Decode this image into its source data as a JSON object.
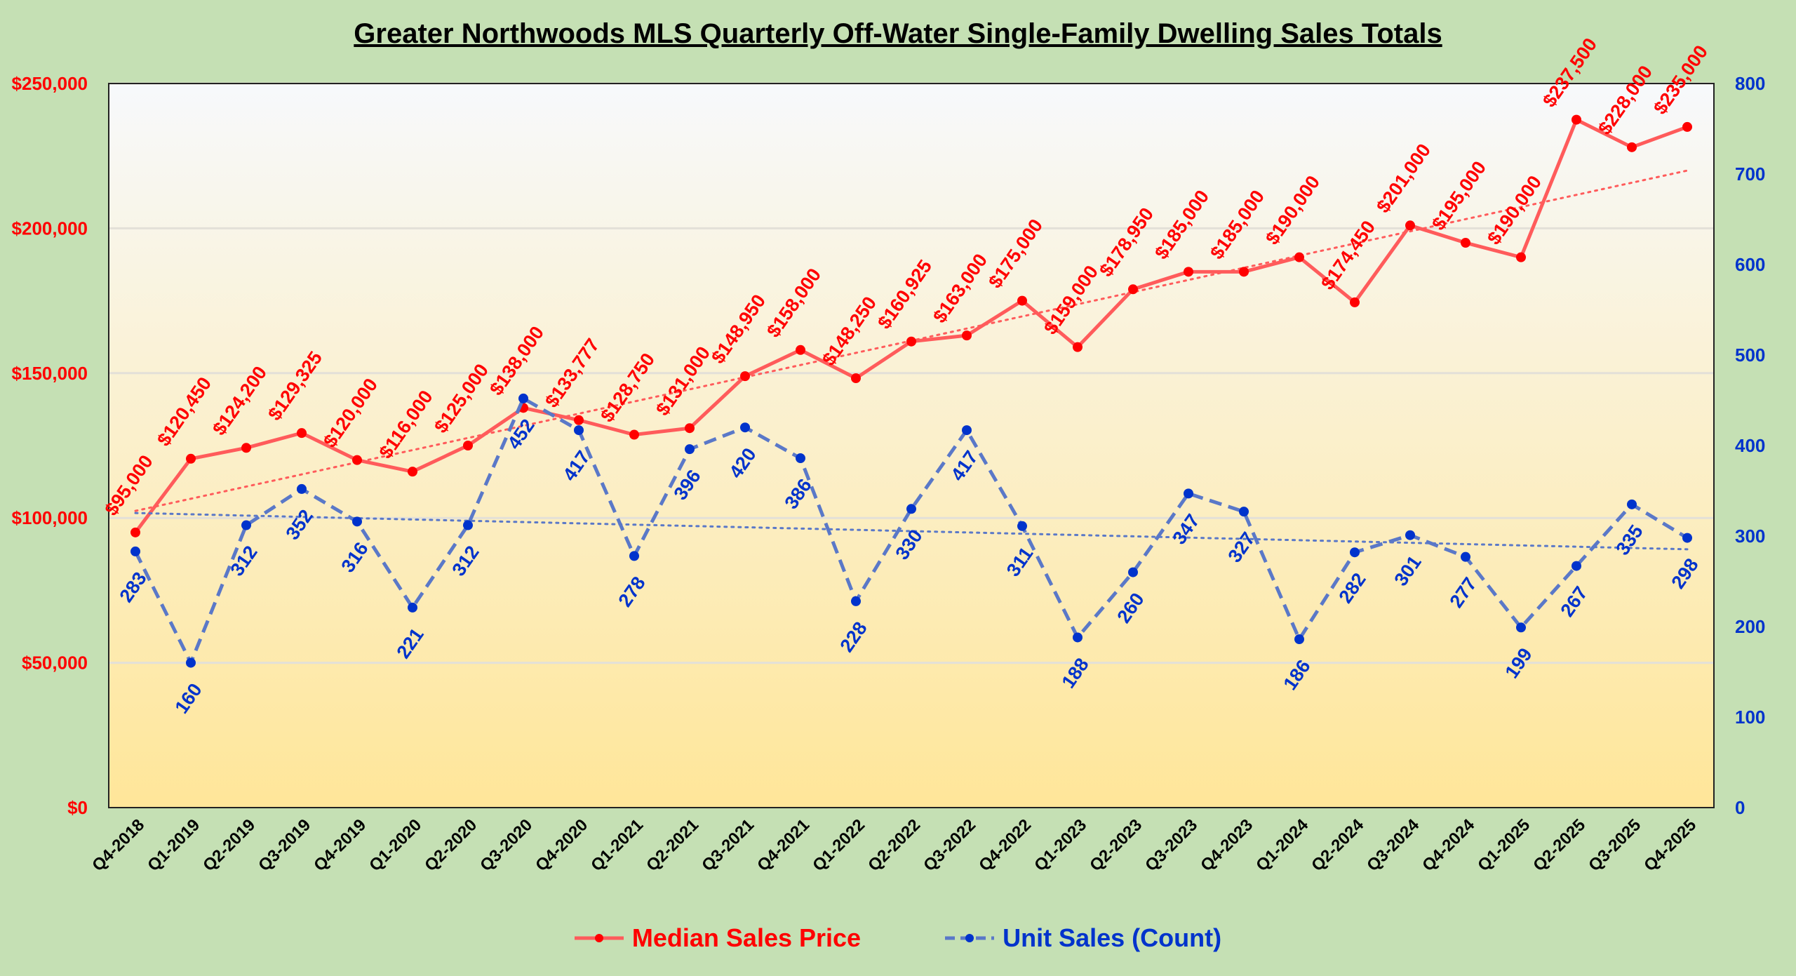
{
  "chart_data": {
    "type": "line",
    "title": "Greater Northwoods MLS Quarterly Off-Water Single-Family Dwelling Sales Totals",
    "categories": [
      "Q4-2018",
      "Q1-2019",
      "Q2-2019",
      "Q3-2019",
      "Q4-2019",
      "Q1-2020",
      "Q2-2020",
      "Q3-2020",
      "Q4-2020",
      "Q1-2021",
      "Q2-2021",
      "Q3-2021",
      "Q4-2021",
      "Q1-2022",
      "Q2-2022",
      "Q3-2022",
      "Q4-2022",
      "Q1-2023",
      "Q2-2023",
      "Q3-2023",
      "Q4-2023",
      "Q1-2024",
      "Q2-2024",
      "Q3-2024",
      "Q4-2024",
      "Q1-2025",
      "Q2-2025",
      "Q3-2025",
      "Q4-2025"
    ],
    "series": [
      {
        "name": "Median Sales Price",
        "axis": "left",
        "color": "#ff0000",
        "line_color": "#ff5b5b",
        "style": "solid",
        "trendline": "linear dotted",
        "values": [
          95000,
          120450,
          124200,
          129325,
          120000,
          116000,
          125000,
          138000,
          133777,
          128750,
          131000,
          148950,
          158000,
          148250,
          160925,
          163000,
          175000,
          159000,
          178950,
          185000,
          185000,
          190000,
          174450,
          201000,
          195000,
          190000,
          237500,
          228000,
          235000
        ],
        "labels": [
          "$95,000",
          "$120,450",
          "$124,200",
          "$129,325",
          "$120,000",
          "$116,000",
          "$125,000",
          "$138,000",
          "$133,777",
          "$128,750",
          "$131,000",
          "$148,950",
          "$158,000",
          "$148,250",
          "$160,925",
          "$163,000",
          "$175,000",
          "$159,000",
          "$178,950",
          "$185,000",
          "$185,000",
          "$190,000",
          "$174,450",
          "$201,000",
          "$195,000",
          "$190,000",
          "$237,500",
          "$228,000",
          "$235,000"
        ]
      },
      {
        "name": "Unit Sales (Count)",
        "axis": "right",
        "color": "#0033cc",
        "line_color": "#5a78c8",
        "style": "dashed",
        "trendline": "linear dotted",
        "values": [
          283,
          160,
          312,
          352,
          316,
          221,
          312,
          452,
          417,
          278,
          396,
          420,
          386,
          228,
          330,
          417,
          311,
          188,
          260,
          347,
          327,
          186,
          282,
          301,
          277,
          199,
          267,
          335,
          298
        ],
        "labels": [
          "283",
          "160",
          "312",
          "352",
          "316",
          "221",
          "312",
          "452",
          "417",
          "278",
          "396",
          "420",
          "386",
          "228",
          "330",
          "417",
          "311",
          "188",
          "260",
          "347",
          "327",
          "186",
          "282",
          "301",
          "277",
          "199",
          "267",
          "335",
          "298"
        ]
      }
    ],
    "y_left": {
      "lim": [
        0,
        250000
      ],
      "ticks": [
        "$0",
        "$50,000",
        "$100,000",
        "$150,000",
        "$200,000",
        "$250,000"
      ],
      "tick_values": [
        0,
        50000,
        100000,
        150000,
        200000,
        250000
      ],
      "color": "#ff0000"
    },
    "y_right": {
      "lim": [
        0,
        800
      ],
      "ticks": [
        "0",
        "100",
        "200",
        "300",
        "400",
        "500",
        "600",
        "700",
        "800"
      ],
      "tick_values": [
        0,
        100,
        200,
        300,
        400,
        500,
        600,
        700,
        800
      ],
      "color": "#0033cc"
    },
    "grid": true,
    "legend": "bottom",
    "background": {
      "outer": "#c5e0b4",
      "plot_top": "#f7f9fc",
      "plot_bottom": "#ffe699"
    }
  }
}
